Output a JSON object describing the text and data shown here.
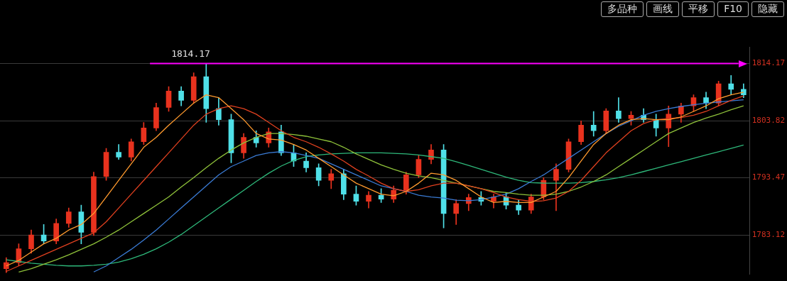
{
  "chart_data": {
    "type": "candlestick",
    "categories": [
      null,
      null,
      null,
      null,
      null,
      null,
      null,
      null,
      null,
      null,
      null,
      null,
      null,
      null,
      null,
      null,
      null,
      null,
      null,
      null,
      null,
      null,
      null,
      null,
      null,
      null,
      null,
      null,
      null,
      null,
      null,
      null,
      null,
      null,
      null,
      null,
      null,
      null,
      null,
      null,
      null,
      null,
      null,
      null,
      null,
      null,
      null,
      null,
      null,
      null,
      null,
      null,
      null,
      null,
      null,
      null,
      null,
      null,
      null,
      null
    ],
    "ohlc": [
      [
        1777.0,
        1779.0,
        1776.3,
        1778.1
      ],
      [
        1778.1,
        1781.5,
        1777.5,
        1780.6
      ],
      [
        1780.6,
        1784.0,
        1779.8,
        1783.1
      ],
      [
        1783.1,
        1785.0,
        1781.5,
        1782.0
      ],
      [
        1782.0,
        1786.0,
        1781.5,
        1785.2
      ],
      [
        1785.2,
        1788.0,
        1784.5,
        1787.3
      ],
      [
        1787.3,
        1788.5,
        1781.5,
        1783.6
      ],
      [
        1783.6,
        1794.5,
        1783.0,
        1793.7
      ],
      [
        1793.7,
        1798.8,
        1793.0,
        1798.1
      ],
      [
        1798.1,
        1799.5,
        1796.8,
        1797.2
      ],
      [
        1797.2,
        1800.5,
        1796.5,
        1800.0
      ],
      [
        1800.0,
        1803.5,
        1799.5,
        1802.5
      ],
      [
        1802.5,
        1807.0,
        1802.0,
        1806.2
      ],
      [
        1806.2,
        1810.0,
        1805.5,
        1809.2
      ],
      [
        1809.2,
        1810.0,
        1806.5,
        1807.5
      ],
      [
        1807.5,
        1812.5,
        1807.0,
        1811.8
      ],
      [
        1811.8,
        1814.17,
        1803.5,
        1806.0
      ],
      [
        1806.0,
        1808.0,
        1803.0,
        1804.0
      ],
      [
        1804.0,
        1805.0,
        1796.2,
        1798.0
      ],
      [
        1798.0,
        1801.5,
        1797.0,
        1800.8
      ],
      [
        1800.8,
        1802.0,
        1799.0,
        1799.8
      ],
      [
        1799.8,
        1802.5,
        1799.0,
        1801.8
      ],
      [
        1801.8,
        1803.0,
        1797.5,
        1798.0
      ],
      [
        1798.0,
        1799.5,
        1795.5,
        1796.5
      ],
      [
        1796.5,
        1798.0,
        1794.5,
        1795.3
      ],
      [
        1795.3,
        1796.0,
        1792.0,
        1793.0
      ],
      [
        1793.0,
        1795.0,
        1791.5,
        1794.2
      ],
      [
        1794.2,
        1795.0,
        1789.5,
        1790.5
      ],
      [
        1790.5,
        1792.0,
        1788.5,
        1789.2
      ],
      [
        1789.2,
        1791.0,
        1788.0,
        1790.3
      ],
      [
        1790.3,
        1791.5,
        1789.0,
        1789.6
      ],
      [
        1789.6,
        1792.0,
        1789.0,
        1791.2
      ],
      [
        1791.2,
        1794.5,
        1790.5,
        1794.0
      ],
      [
        1794.0,
        1797.5,
        1793.5,
        1796.8
      ],
      [
        1796.8,
        1799.5,
        1796.0,
        1798.5
      ],
      [
        1798.5,
        1799.5,
        1784.4,
        1787.0
      ],
      [
        1787.0,
        1789.5,
        1785.0,
        1788.8
      ],
      [
        1788.8,
        1790.5,
        1787.5,
        1789.9
      ],
      [
        1789.9,
        1791.0,
        1788.5,
        1789.2
      ],
      [
        1789.2,
        1790.5,
        1788.0,
        1790.0
      ],
      [
        1790.0,
        1790.8,
        1787.8,
        1788.5
      ],
      [
        1788.5,
        1789.5,
        1786.8,
        1787.6
      ],
      [
        1787.6,
        1790.5,
        1787.0,
        1790.0
      ],
      [
        1790.0,
        1793.5,
        1789.5,
        1793.0
      ],
      [
        1793.0,
        1796.0,
        1787.5,
        1795.0
      ],
      [
        1795.0,
        1800.5,
        1794.5,
        1800.0
      ],
      [
        1800.0,
        1803.8,
        1799.5,
        1803.0
      ],
      [
        1803.0,
        1805.5,
        1801.0,
        1802.0
      ],
      [
        1802.0,
        1806.0,
        1801.5,
        1805.6
      ],
      [
        1805.6,
        1808.0,
        1803.5,
        1804.2
      ],
      [
        1804.2,
        1805.5,
        1803.0,
        1804.8
      ],
      [
        1804.8,
        1806.0,
        1803.5,
        1804.0
      ],
      [
        1804.0,
        1805.0,
        1801.0,
        1802.5
      ],
      [
        1802.5,
        1806.5,
        1799.1,
        1805.0
      ],
      [
        1805.0,
        1807.0,
        1803.5,
        1806.5
      ],
      [
        1806.5,
        1808.5,
        1805.5,
        1808.0
      ],
      [
        1808.0,
        1809.0,
        1806.0,
        1807.0
      ],
      [
        1807.0,
        1811.0,
        1806.5,
        1810.5
      ],
      [
        1810.5,
        1812.0,
        1808.5,
        1809.5
      ],
      [
        1809.5,
        1810.5,
        1808.0,
        1808.5
      ]
    ],
    "series": [
      {
        "type": "line",
        "color": "#ff9a2e",
        "values": [
          1777.5,
          1778.5,
          1780.0,
          1781.5,
          1782.5,
          1784.0,
          1785.0,
          1787.0,
          1790.0,
          1793.0,
          1796.0,
          1799.0,
          1800.8,
          1803.0,
          1805.0,
          1807.0,
          1808.5,
          1808.0,
          1806.0,
          1804.0,
          1801.5,
          1800.5,
          1800.3,
          1799.5,
          1798.5,
          1797.0,
          1795.5,
          1794.0,
          1792.5,
          1791.5,
          1790.5,
          1790.2,
          1791.0,
          1792.5,
          1794.3,
          1794.0,
          1793.0,
          1791.5,
          1790.0,
          1789.0,
          1789.2,
          1789.0,
          1789.0,
          1790.0,
          1791.0,
          1793.5,
          1796.5,
          1799.5,
          1801.5,
          1803.0,
          1804.0,
          1804.2,
          1804.0,
          1804.0,
          1804.5,
          1805.5,
          1806.5,
          1807.8,
          1808.5,
          1809.0
        ]
      },
      {
        "type": "line",
        "color": "#e0401f",
        "values": [
          1776.5,
          1777.5,
          1778.5,
          1779.5,
          1780.5,
          1781.5,
          1782.5,
          1783.5,
          1785.5,
          1788.0,
          1790.5,
          1793.0,
          1795.5,
          1798.0,
          1800.5,
          1803.0,
          1805.0,
          1806.0,
          1806.5,
          1806.0,
          1805.0,
          1803.5,
          1802.0,
          1800.8,
          1800.0,
          1799.0,
          1797.8,
          1796.5,
          1795.0,
          1793.8,
          1792.5,
          1791.5,
          1791.0,
          1791.3,
          1792.0,
          1792.5,
          1792.5,
          1792.0,
          1791.5,
          1790.8,
          1790.0,
          1789.5,
          1789.2,
          1789.3,
          1789.8,
          1791.0,
          1793.0,
          1795.5,
          1798.0,
          1800.0,
          1802.0,
          1803.3,
          1804.0,
          1804.2,
          1804.4,
          1804.8,
          1805.5,
          1806.5,
          1807.5,
          1808.3
        ]
      },
      {
        "type": "line",
        "color": "#8fc23a",
        "values": [
          null,
          1776.4,
          1777.0,
          1777.8,
          1778.6,
          1779.5,
          1780.5,
          1781.5,
          1782.7,
          1784.0,
          1785.5,
          1787.0,
          1788.5,
          1790.0,
          1791.8,
          1793.5,
          1795.3,
          1797.0,
          1798.5,
          1799.8,
          1800.8,
          1801.5,
          1801.5,
          1801.3,
          1801.0,
          1800.5,
          1800.0,
          1799.0,
          1797.8,
          1796.8,
          1795.8,
          1795.0,
          1794.3,
          1793.8,
          1793.5,
          1793.0,
          1792.5,
          1792.0,
          1791.5,
          1791.0,
          1790.8,
          1790.5,
          1790.3,
          1790.3,
          1790.5,
          1791.0,
          1791.8,
          1792.8,
          1794.0,
          1795.5,
          1797.0,
          1798.5,
          1800.0,
          1801.5,
          1802.5,
          1803.5,
          1804.3,
          1805.0,
          1805.8,
          1806.5
        ]
      },
      {
        "type": "line",
        "color": "#3a7bd5",
        "values": [
          null,
          null,
          null,
          null,
          null,
          null,
          null,
          1776.4,
          1777.5,
          1779.0,
          1780.5,
          1782.2,
          1784.0,
          1786.0,
          1788.0,
          1790.0,
          1792.0,
          1794.0,
          1795.5,
          1796.5,
          1797.5,
          1798.0,
          1798.2,
          1798.0,
          1797.5,
          1797.0,
          1796.0,
          1795.0,
          1794.0,
          1793.0,
          1792.0,
          1791.5,
          1791.0,
          1790.3,
          1790.0,
          1789.8,
          1789.4,
          1789.3,
          1789.5,
          1790.0,
          1790.5,
          1791.5,
          1792.8,
          1794.0,
          1795.5,
          1797.0,
          1798.5,
          1800.0,
          1801.5,
          1802.8,
          1803.8,
          1804.8,
          1805.5,
          1806.0,
          1806.4,
          1806.7,
          1807.0,
          1807.2,
          1807.4,
          1807.6
        ]
      },
      {
        "type": "line",
        "color": "#2eb87a",
        "values": [
          1778.6,
          1778.3,
          1778.0,
          1777.8,
          1777.6,
          1777.5,
          1777.5,
          1777.6,
          1777.8,
          1778.2,
          1778.8,
          1779.6,
          1780.6,
          1781.8,
          1783.2,
          1784.8,
          1786.4,
          1788.0,
          1789.6,
          1791.2,
          1792.8,
          1794.3,
          1795.6,
          1796.6,
          1797.3,
          1797.6,
          1797.8,
          1797.9,
          1798.0,
          1798.0,
          1798.0,
          1797.9,
          1797.8,
          1797.6,
          1797.3,
          1797.0,
          1796.4,
          1795.7,
          1795.0,
          1794.3,
          1793.6,
          1793.0,
          1792.6,
          1792.5,
          1792.5,
          1792.5,
          1792.6,
          1792.8,
          1793.1,
          1793.5,
          1794.0,
          1794.6,
          1795.2,
          1795.8,
          1796.4,
          1797.0,
          1797.6,
          1798.2,
          1798.8,
          1799.4
        ]
      }
    ],
    "ylim": [
      1776.0,
      1817.2
    ],
    "yticks": [
      1783.12,
      1793.47,
      1803.82,
      1814.17
    ],
    "grid": "y",
    "tick_labels": "y",
    "ref_lines": [
      {
        "axis": "y",
        "value": 1814.17,
        "label": "1814.17",
        "color": "#ff00ff"
      }
    ],
    "annotations": [
      "多品种",
      "画线",
      "平移",
      "F10",
      "隐藏"
    ]
  }
}
